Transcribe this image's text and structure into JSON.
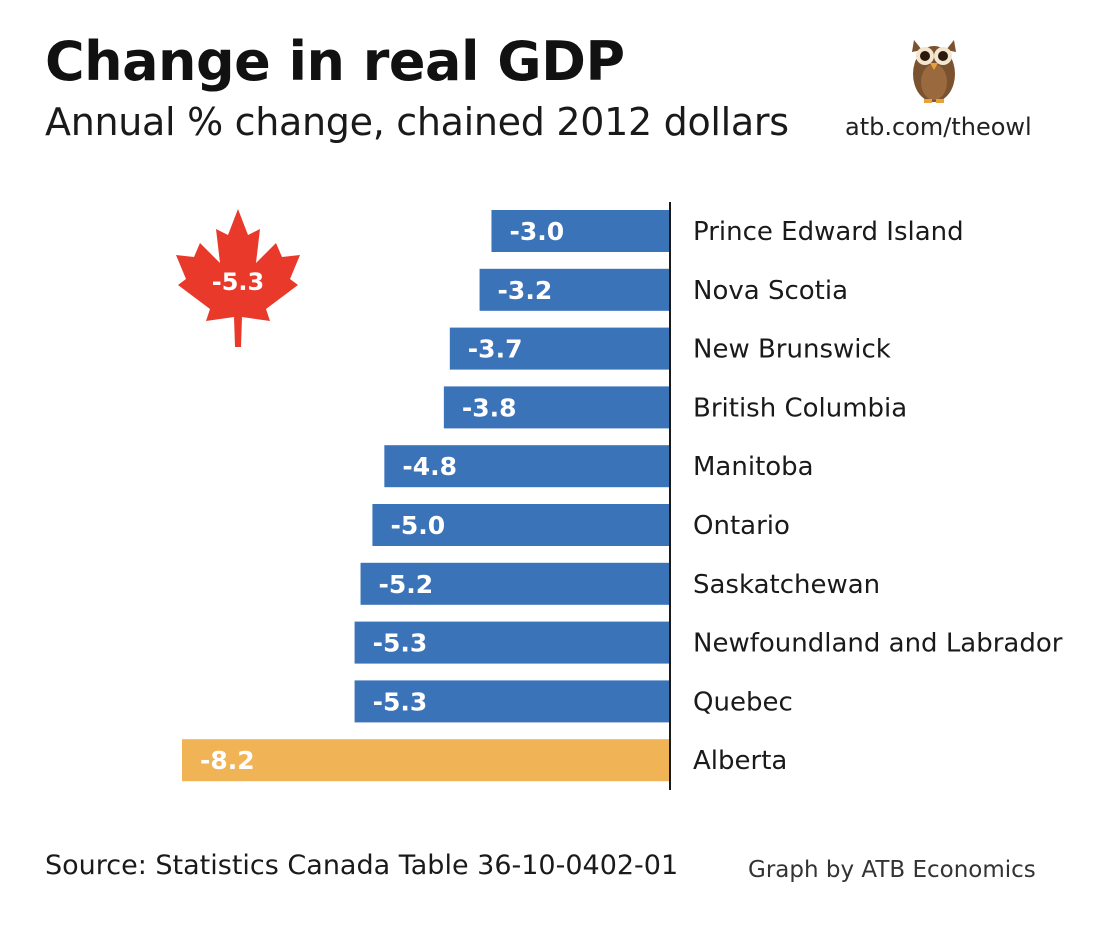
{
  "title": "Change in real GDP",
  "subtitle": "Annual % change, chained 2012 dollars",
  "brand_url": "atb.com/theowl",
  "national_label": "-5.3",
  "source": "Source: Statistics Canada Table 36-10-0402-01",
  "credit": "Graph by ATB Economics",
  "colors": {
    "bar": "#3b73b9",
    "highlight": "#f0b456",
    "leaf": "#e8392b",
    "axis": "#1a1a1a"
  },
  "chart_data": {
    "type": "bar",
    "orientation": "horizontal",
    "categories": [
      "Prince Edward Island",
      "Nova Scotia",
      "New Brunswick",
      "British Columbia",
      "Manitoba",
      "Ontario",
      "Saskatchewan",
      "Newfoundland and Labrador",
      "Quebec",
      "Alberta"
    ],
    "values": [
      -3.0,
      -3.2,
      -3.7,
      -3.8,
      -4.8,
      -5.0,
      -5.2,
      -5.3,
      -5.3,
      -8.2
    ],
    "labels": [
      "-3.0",
      "-3.2",
      "-3.7",
      "-3.8",
      "-4.8",
      "-5.0",
      "-5.2",
      "-5.3",
      "-5.3",
      "-8.2"
    ],
    "highlight": "Alberta",
    "national_value": -5.3,
    "xlim": [
      -8.2,
      0
    ],
    "grid": false,
    "legend": "none"
  }
}
